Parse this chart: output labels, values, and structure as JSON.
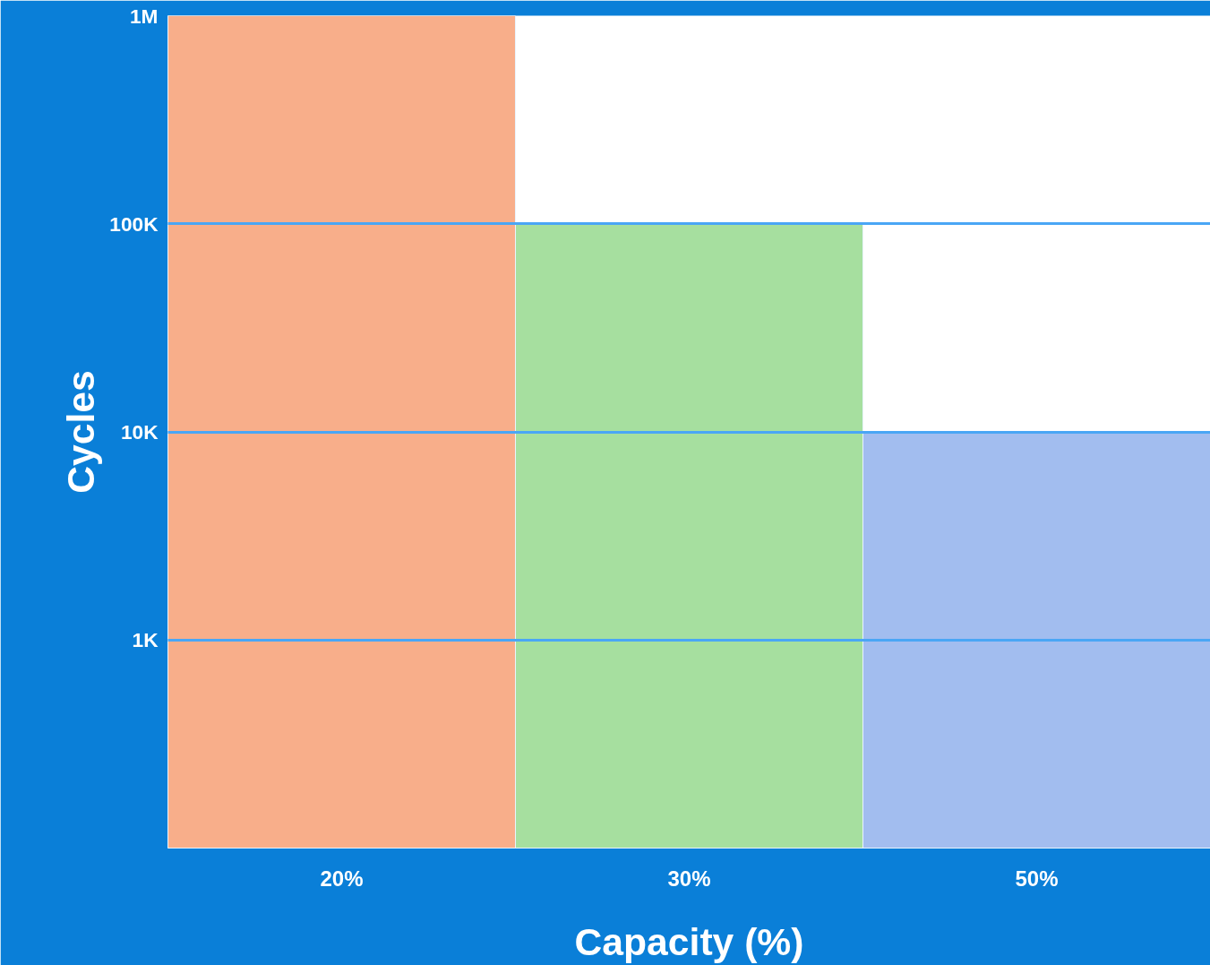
{
  "chart_data": {
    "type": "bar",
    "categories": [
      "20%",
      "30%",
      "50%"
    ],
    "values": [
      1000000,
      100000,
      10000
    ],
    "colors": [
      "#f8ae8a",
      "#a6df9f",
      "#a2bdef"
    ],
    "xlabel": "Capacity (%)",
    "ylabel": "Cycles",
    "ylim": [
      100,
      1000000
    ],
    "yticks": [
      {
        "value": 1000,
        "label": "1K"
      },
      {
        "value": 10000,
        "label": "10K"
      },
      {
        "value": 100000,
        "label": "100K"
      },
      {
        "value": 1000000,
        "label": "1M"
      }
    ],
    "log": true,
    "grid": "y"
  }
}
